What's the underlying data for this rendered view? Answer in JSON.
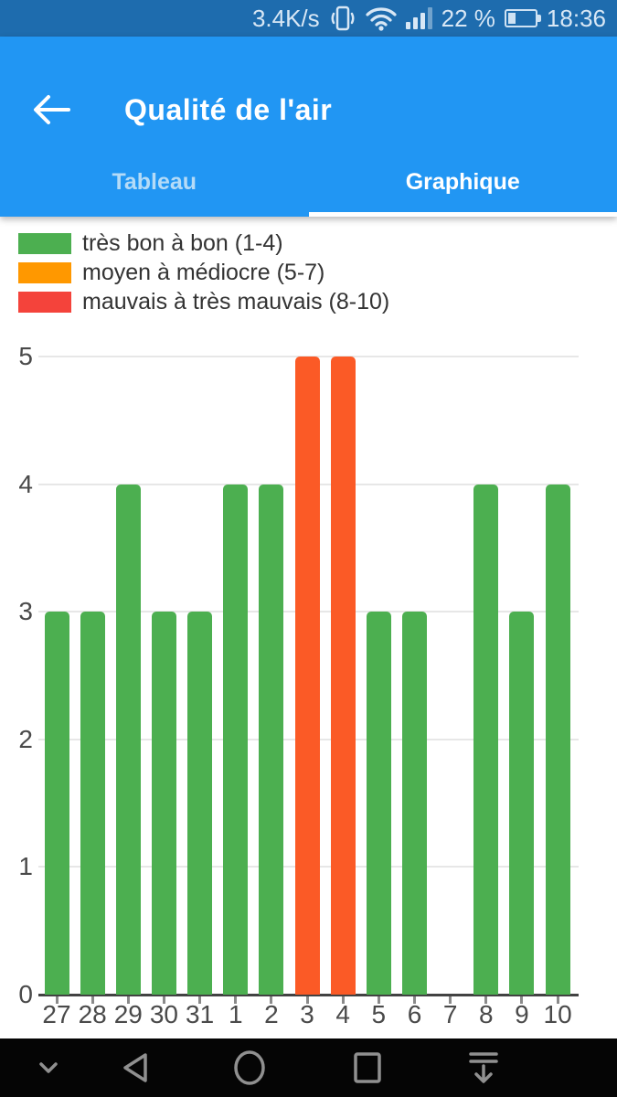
{
  "status_bar": {
    "net_speed": "3.4K/s",
    "battery_percent": "22 %",
    "time": "18:36"
  },
  "header": {
    "title": "Qualité de l'air",
    "back_icon": "arrow-left",
    "tabs": [
      {
        "label": "Tableau",
        "selected": false
      },
      {
        "label": "Graphique",
        "selected": true
      }
    ]
  },
  "legend": {
    "items": [
      {
        "label": "très bon à bon (1-4)",
        "color": "#4caf50"
      },
      {
        "label": "moyen à médiocre (5-7)",
        "color": "#ff9800"
      },
      {
        "label": "mauvais à très mauvais (8-10)",
        "color": "#f4433b"
      }
    ]
  },
  "chart_data": {
    "type": "bar",
    "categories": [
      "27",
      "28",
      "29",
      "30",
      "31",
      "1",
      "2",
      "3",
      "4",
      "5",
      "6",
      "7",
      "8",
      "9",
      "10"
    ],
    "values": [
      3,
      3,
      4,
      3,
      3,
      4,
      4,
      5,
      5,
      3,
      3,
      0,
      4,
      3,
      4
    ],
    "bar_colors": [
      "#4caf50",
      "#4caf50",
      "#4caf50",
      "#4caf50",
      "#4caf50",
      "#4caf50",
      "#4caf50",
      "#fb5a26",
      "#fb5a26",
      "#4caf50",
      "#4caf50",
      "#4caf50",
      "#4caf50",
      "#4caf50",
      "#4caf50"
    ],
    "title": "",
    "xlabel": "",
    "ylabel": "",
    "ylim": [
      0,
      5
    ],
    "yticks": [
      0,
      1,
      2,
      3,
      4,
      5
    ],
    "grid": true,
    "legend_position": "top-left",
    "series_colors_meaning": {
      "green": "très bon à bon (1-4)",
      "orange": "moyen à médiocre (5-7)",
      "red": "mauvais à très mauvais (8-10)"
    }
  },
  "nav_bar": {
    "icons": [
      "chevron-down-icon",
      "back-triangle-icon",
      "home-circle-icon",
      "recents-square-icon",
      "notification-pulldown-icon"
    ]
  }
}
